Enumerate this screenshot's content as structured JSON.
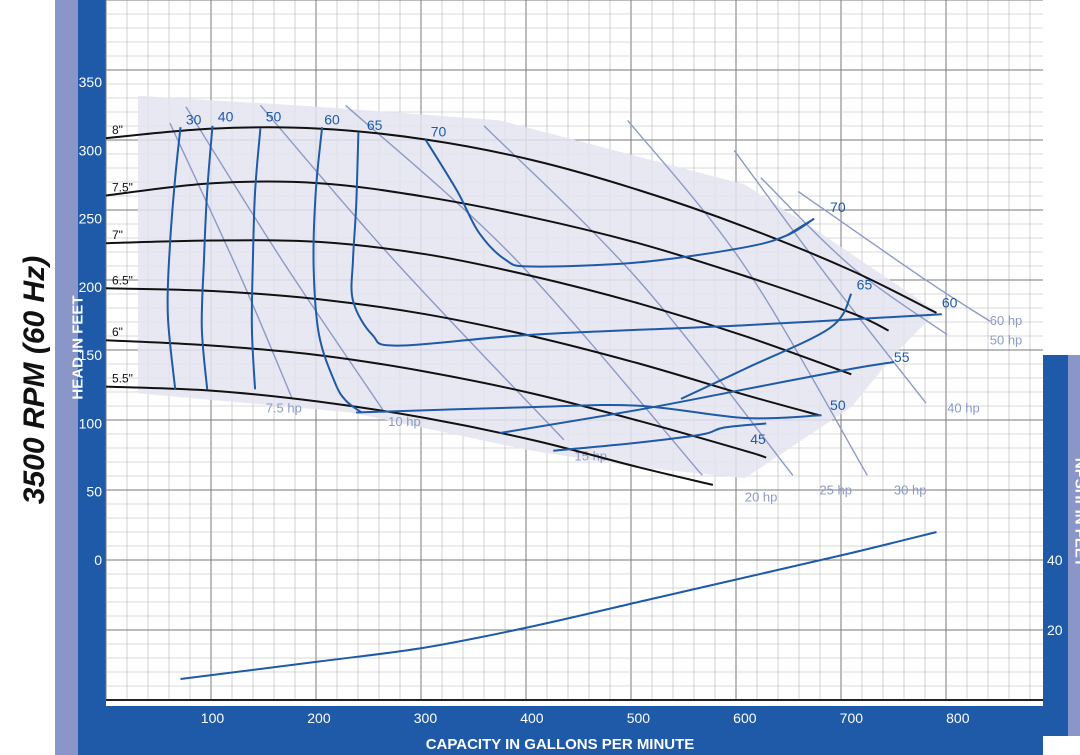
{
  "page": {
    "side_title": "3500 RPM (60 Hz)",
    "colors": {
      "frame": "#1e5aa8",
      "side_band": "#8a96c8",
      "grid": "#b4b4b4",
      "grid_major": "#7a7a7a",
      "region": "#e4e4f0",
      "head_curve": "#111111",
      "efficiency_curve": "#1e5aa8",
      "hp_line": "#8c9ac8",
      "npsh_curve": "#1e5aa8"
    }
  },
  "chart_data": {
    "type": "line",
    "title": "",
    "xlabel": "CAPACITY IN GALLONS PER MINUTE",
    "ylabel": "HEAD IN FEET",
    "y2label": "NPSHr IN FEET",
    "xlim": [
      0,
      880
    ],
    "ylim": [
      0,
      380
    ],
    "xticks": [
      100,
      200,
      300,
      400,
      500,
      600,
      700,
      800
    ],
    "yticks": [
      0,
      50,
      100,
      150,
      200,
      250,
      300,
      350
    ],
    "y2ticks": [
      20,
      40
    ],
    "grid": true,
    "head_curves": [
      {
        "name": "8\"",
        "points": [
          [
            0,
            309
          ],
          [
            100,
            316
          ],
          [
            200,
            316
          ],
          [
            300,
            308
          ],
          [
            400,
            293
          ],
          [
            500,
            271
          ],
          [
            600,
            244
          ],
          [
            700,
            212
          ],
          [
            780,
            181
          ]
        ]
      },
      {
        "name": "7.5\"",
        "points": [
          [
            0,
            267
          ],
          [
            100,
            276
          ],
          [
            200,
            276
          ],
          [
            300,
            266
          ],
          [
            400,
            251
          ],
          [
            500,
            232
          ],
          [
            600,
            208
          ],
          [
            700,
            181
          ],
          [
            735,
            168
          ]
        ]
      },
      {
        "name": "7\"",
        "points": [
          [
            0,
            232
          ],
          [
            100,
            234
          ],
          [
            200,
            233
          ],
          [
            300,
            224
          ],
          [
            400,
            208
          ],
          [
            500,
            188
          ],
          [
            600,
            164
          ],
          [
            700,
            136
          ]
        ]
      },
      {
        "name": "6.5\"",
        "points": [
          [
            0,
            199
          ],
          [
            100,
            197
          ],
          [
            200,
            191
          ],
          [
            300,
            180
          ],
          [
            400,
            164
          ],
          [
            500,
            144
          ],
          [
            600,
            121
          ],
          [
            670,
            106
          ]
        ]
      },
      {
        "name": "6\"",
        "points": [
          [
            0,
            161
          ],
          [
            100,
            157
          ],
          [
            200,
            150
          ],
          [
            300,
            138
          ],
          [
            400,
            122
          ],
          [
            500,
            102
          ],
          [
            600,
            80
          ],
          [
            620,
            75
          ]
        ]
      },
      {
        "name": "5.5\"",
        "points": [
          [
            0,
            127
          ],
          [
            100,
            124
          ],
          [
            200,
            116
          ],
          [
            300,
            104
          ],
          [
            400,
            88
          ],
          [
            500,
            68
          ],
          [
            570,
            55
          ]
        ]
      }
    ],
    "efficiency_curves": [
      {
        "name": "30",
        "label_pos": [
          75,
          319
        ],
        "points": [
          [
            70,
            317
          ],
          [
            65,
            280
          ],
          [
            60,
            230
          ],
          [
            58,
            180
          ],
          [
            65,
            125
          ]
        ]
      },
      {
        "name": "40",
        "label_pos": [
          105,
          321
        ],
        "points": [
          [
            100,
            318
          ],
          [
            95,
            270
          ],
          [
            92,
            220
          ],
          [
            90,
            170
          ],
          [
            95,
            125
          ]
        ]
      },
      {
        "name": "50",
        "label_pos": [
          150,
          321
        ],
        "points": [
          [
            145,
            316
          ],
          [
            140,
            270
          ],
          [
            138,
            220
          ],
          [
            137,
            170
          ],
          [
            140,
            125
          ]
        ]
      },
      {
        "name": "60",
        "label_pos": [
          205,
          319
        ],
        "points": [
          [
            203,
            317
          ],
          [
            197,
            270
          ],
          [
            195,
            215
          ],
          [
            200,
            165
          ],
          [
            215,
            130
          ],
          [
            225,
            117
          ],
          [
            240,
            108
          ]
        ]
      },
      {
        "name": "65",
        "label_pos": [
          245,
          315
        ],
        "points": [
          [
            237,
            313
          ],
          [
            235,
            260
          ],
          [
            232,
            220
          ],
          [
            232,
            190
          ],
          [
            250,
            165
          ],
          [
            275,
            157
          ],
          [
            400,
            165
          ],
          [
            600,
            172
          ],
          [
            785,
            180
          ]
        ]
      },
      {
        "name": "70",
        "label_pos": [
          305,
          310
        ],
        "points": [
          [
            300,
            308
          ],
          [
            330,
            270
          ],
          [
            350,
            240
          ],
          [
            375,
            220
          ],
          [
            400,
            215
          ],
          [
            500,
            218
          ],
          [
            600,
            229
          ],
          [
            640,
            238
          ],
          [
            665,
            250
          ]
        ]
      },
      {
        "name": "70",
        "label_pos": [
          680,
          255
        ],
        "points": [
          [
            640,
            238
          ],
          [
            665,
            250
          ]
        ]
      },
      {
        "name": "65",
        "label_pos": [
          705,
          198
        ],
        "points": [
          [
            540,
            118
          ],
          [
            600,
            140
          ],
          [
            680,
            170
          ],
          [
            700,
            195
          ]
        ]
      },
      {
        "name": "60",
        "label_pos": [
          785,
          185
        ],
        "points": [
          [
            780,
            181
          ]
        ]
      },
      {
        "name": "55",
        "label_pos": [
          740,
          145
        ],
        "points": [
          [
            370,
            93
          ],
          [
            500,
            110
          ],
          [
            600,
            125
          ],
          [
            700,
            140
          ],
          [
            740,
            145
          ]
        ]
      },
      {
        "name": "50",
        "label_pos": [
          680,
          110
        ],
        "points": [
          [
            235,
            108
          ],
          [
            400,
            112
          ],
          [
            500,
            113
          ],
          [
            600,
            104
          ],
          [
            672,
            106
          ]
        ]
      },
      {
        "name": "45",
        "label_pos": [
          605,
          85
        ],
        "points": [
          [
            420,
            80
          ],
          [
            500,
            86
          ],
          [
            560,
            92
          ],
          [
            580,
            97
          ],
          [
            620,
            100
          ]
        ]
      }
    ],
    "hp_lines": [
      {
        "name": "7.5 hp",
        "label_pos": [
          150,
          108
        ],
        "points": [
          [
            60,
            320
          ],
          [
            125,
            210
          ],
          [
            175,
            118
          ]
        ]
      },
      {
        "name": "10 hp",
        "label_pos": [
          265,
          98
        ],
        "points": [
          [
            75,
            332
          ],
          [
            165,
            220
          ],
          [
            260,
            110
          ]
        ]
      },
      {
        "name": "15 hp",
        "label_pos": [
          440,
          73
        ],
        "points": [
          [
            145,
            333
          ],
          [
            270,
            220
          ],
          [
            430,
            88
          ]
        ]
      },
      {
        "name": "20 hp",
        "label_pos": [
          600,
          43
        ],
        "points": [
          [
            225,
            333
          ],
          [
            385,
            220
          ],
          [
            560,
            62
          ]
        ]
      },
      {
        "name": "25 hp",
        "label_pos": [
          670,
          48
        ],
        "points": [
          [
            355,
            318
          ],
          [
            500,
            205
          ],
          [
            645,
            62
          ]
        ]
      },
      {
        "name": "30 hp",
        "label_pos": [
          740,
          48
        ],
        "points": [
          [
            490,
            322
          ],
          [
            600,
            215
          ],
          [
            715,
            62
          ]
        ]
      },
      {
        "name": "40 hp",
        "label_pos": [
          790,
          108
        ],
        "points": [
          [
            590,
            300
          ],
          [
            680,
            205
          ],
          [
            770,
            115
          ]
        ]
      },
      {
        "name": "50 hp",
        "label_pos": [
          830,
          158
        ],
        "points": [
          [
            615,
            280
          ],
          [
            700,
            215
          ],
          [
            790,
            165
          ]
        ]
      },
      {
        "name": "60 hp",
        "label_pos": [
          830,
          172
        ],
        "points": [
          [
            650,
            270
          ],
          [
            770,
            205
          ],
          [
            830,
            175
          ]
        ]
      }
    ],
    "region_outline": [
      [
        30,
        340
      ],
      [
        200,
        332
      ],
      [
        370,
        322
      ],
      [
        600,
        275
      ],
      [
        670,
        240
      ],
      [
        780,
        182
      ],
      [
        740,
        150
      ],
      [
        700,
        112
      ],
      [
        600,
        60
      ],
      [
        500,
        68
      ],
      [
        400,
        80
      ],
      [
        230,
        108
      ],
      [
        30,
        122
      ]
    ],
    "npsh_curve": {
      "name": "NPSHr",
      "points": [
        [
          70,
          6
        ],
        [
          200,
          11
        ],
        [
          300,
          15
        ],
        [
          400,
          21
        ],
        [
          500,
          28
        ],
        [
          600,
          35
        ],
        [
          700,
          42
        ],
        [
          780,
          48
        ]
      ]
    }
  }
}
